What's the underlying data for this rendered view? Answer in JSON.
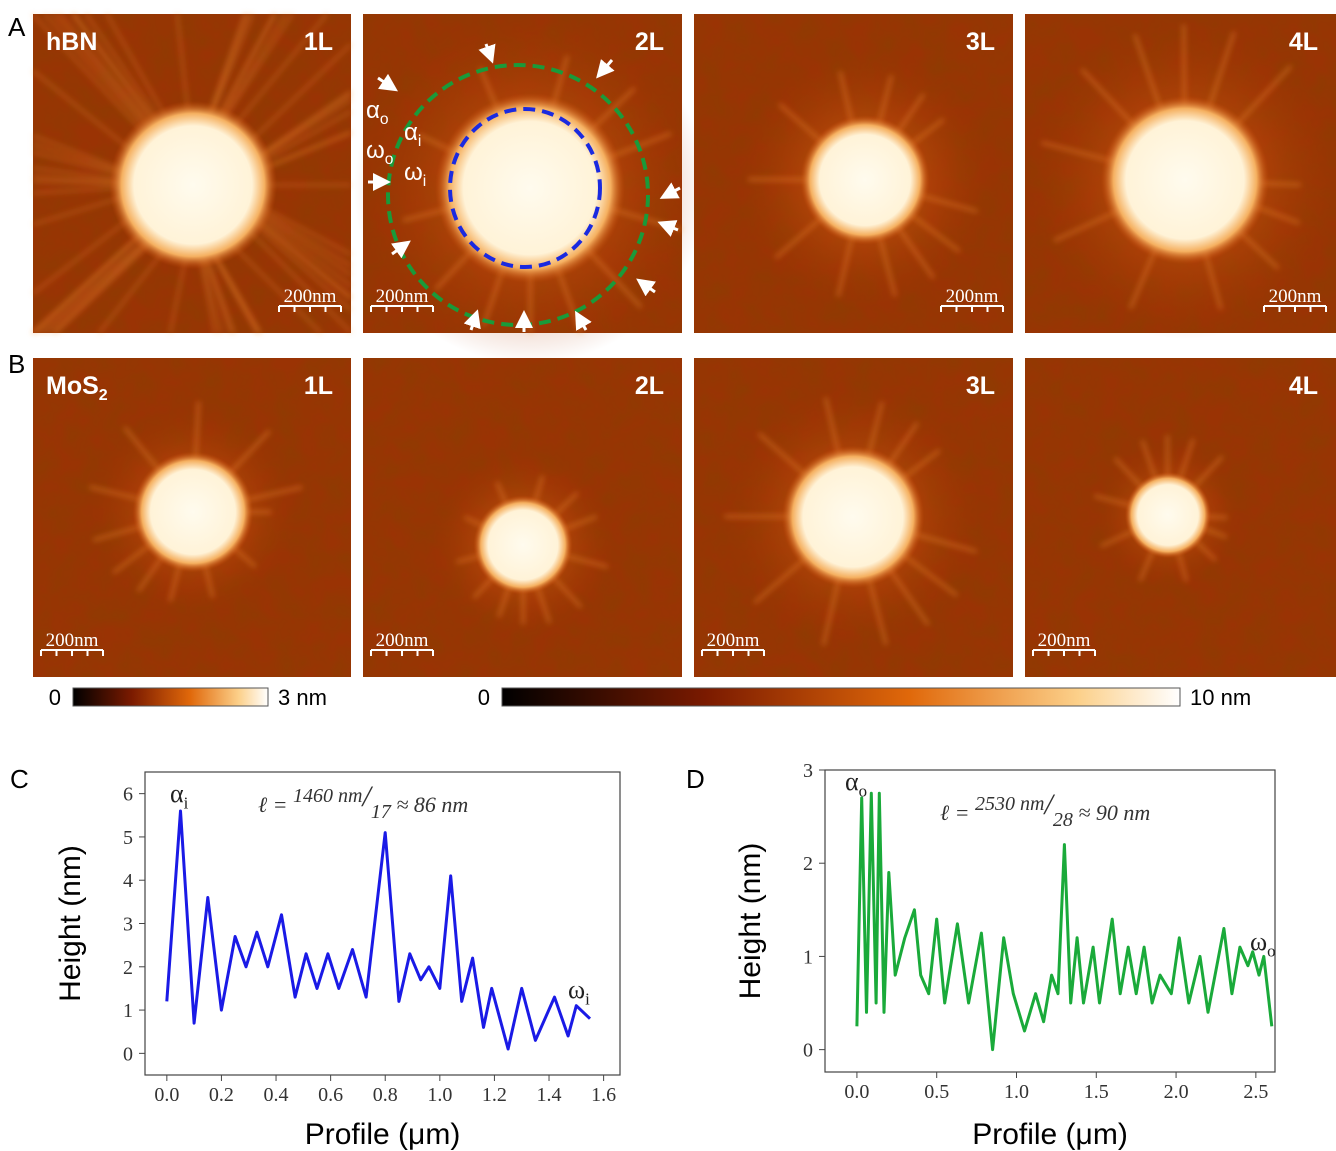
{
  "panel_labels": [
    "A",
    "B",
    "C",
    "D"
  ],
  "row_a": {
    "material": "hBN",
    "layers": [
      "1L",
      "2L",
      "3L",
      "4L"
    ],
    "scale_bar": "200nm"
  },
  "row_b": {
    "material": {
      "text": "MoS",
      "sub": "2"
    },
    "layers": [
      "1L",
      "2L",
      "3L",
      "4L"
    ],
    "scale_bar": "200nm"
  },
  "annotations_2l": [
    {
      "symbol": "α",
      "sub": "o"
    },
    {
      "symbol": "α",
      "sub": "i"
    },
    {
      "symbol": "ω",
      "sub": "o"
    },
    {
      "symbol": "ω",
      "sub": "i"
    }
  ],
  "colorbars": [
    {
      "min": "0",
      "max": "3 nm"
    },
    {
      "min": "0",
      "max": "10 nm"
    }
  ],
  "chart_data": [
    {
      "type": "line",
      "xlabel": "Profile (μm)",
      "ylabel": "Height (nm)",
      "x": [
        0,
        0.05,
        0.1,
        0.15,
        0.2,
        0.25,
        0.29,
        0.33,
        0.37,
        0.42,
        0.47,
        0.51,
        0.55,
        0.59,
        0.63,
        0.68,
        0.73,
        0.8,
        0.85,
        0.89,
        0.93,
        0.96,
        1.0,
        1.04,
        1.08,
        1.12,
        1.16,
        1.19,
        1.25,
        1.3,
        1.35,
        1.42,
        1.47,
        1.5,
        1.55
      ],
      "series": [
        {
          "color": "#1a1ae6",
          "values": [
            1.2,
            5.6,
            0.7,
            3.6,
            1.0,
            2.7,
            2.0,
            2.8,
            2.0,
            3.2,
            1.3,
            2.3,
            1.5,
            2.3,
            1.5,
            2.4,
            1.3,
            5.1,
            1.2,
            2.3,
            1.7,
            2.0,
            1.5,
            4.1,
            1.2,
            2.2,
            0.6,
            1.5,
            0.1,
            1.5,
            0.3,
            1.3,
            0.4,
            1.1,
            0.8
          ]
        }
      ],
      "xlim": [
        -0.08,
        1.66
      ],
      "ylim": [
        -0.5,
        6.5
      ],
      "xticks": [
        {
          "value": 0,
          "label": "0.0"
        },
        0.2,
        0.4,
        0.6,
        0.8,
        {
          "value": 1,
          "label": "1.0"
        },
        1.2,
        1.4,
        1.6
      ],
      "yticks": [
        0,
        1,
        2,
        3,
        4,
        5,
        6
      ],
      "annotations": [
        {
          "symbol": "α",
          "sub": "i"
        },
        {
          "symbol": "ω",
          "sub": "i"
        }
      ],
      "formula": [
        "ℓ = ",
        "1460 nm",
        "/",
        "17",
        " ≈ 86 nm"
      ]
    },
    {
      "type": "line",
      "xlabel": "Profile (μm)",
      "ylabel": "Height (nm)",
      "x": [
        0,
        0.03,
        0.06,
        0.09,
        0.12,
        0.14,
        0.17,
        0.2,
        0.24,
        0.3,
        0.36,
        0.4,
        0.45,
        0.5,
        0.55,
        0.63,
        0.7,
        0.78,
        0.85,
        0.92,
        0.98,
        1.05,
        1.12,
        1.17,
        1.22,
        1.26,
        1.3,
        1.34,
        1.38,
        1.42,
        1.48,
        1.52,
        1.6,
        1.65,
        1.7,
        1.75,
        1.8,
        1.85,
        1.9,
        1.97,
        2.02,
        2.08,
        2.15,
        2.2,
        2.3,
        2.35,
        2.4,
        2.45,
        2.48,
        2.52,
        2.55,
        2.6
      ],
      "series": [
        {
          "color": "#1aaa3a",
          "values": [
            0.25,
            2.7,
            0.4,
            2.75,
            0.5,
            2.75,
            0.4,
            1.9,
            0.8,
            1.2,
            1.5,
            0.8,
            0.6,
            1.4,
            0.5,
            1.35,
            0.5,
            1.25,
            0.0,
            1.2,
            0.6,
            0.2,
            0.6,
            0.3,
            0.8,
            0.6,
            2.2,
            0.5,
            1.2,
            0.5,
            1.1,
            0.5,
            1.4,
            0.6,
            1.1,
            0.6,
            1.1,
            0.5,
            0.8,
            0.6,
            1.2,
            0.5,
            1.0,
            0.4,
            1.3,
            0.6,
            1.1,
            0.9,
            1.05,
            0.8,
            1.0,
            0.25
          ]
        }
      ],
      "xlim": [
        -0.2,
        2.62
      ],
      "ylim": [
        -0.24,
        3.0
      ],
      "xticks": [
        {
          "value": 0,
          "label": "0.0"
        },
        0.5,
        {
          "value": 1,
          "label": "1.0"
        },
        1.5,
        {
          "value": 2,
          "label": "2.0"
        },
        2.5
      ],
      "yticks": [
        0,
        1,
        2,
        3
      ],
      "annotations": [
        {
          "symbol": "α",
          "sub": "o"
        },
        {
          "symbol": "ω",
          "sub": "o"
        }
      ],
      "formula": [
        "ℓ = ",
        "2530 nm",
        "/",
        "28",
        " ≈ 90 nm"
      ]
    }
  ]
}
